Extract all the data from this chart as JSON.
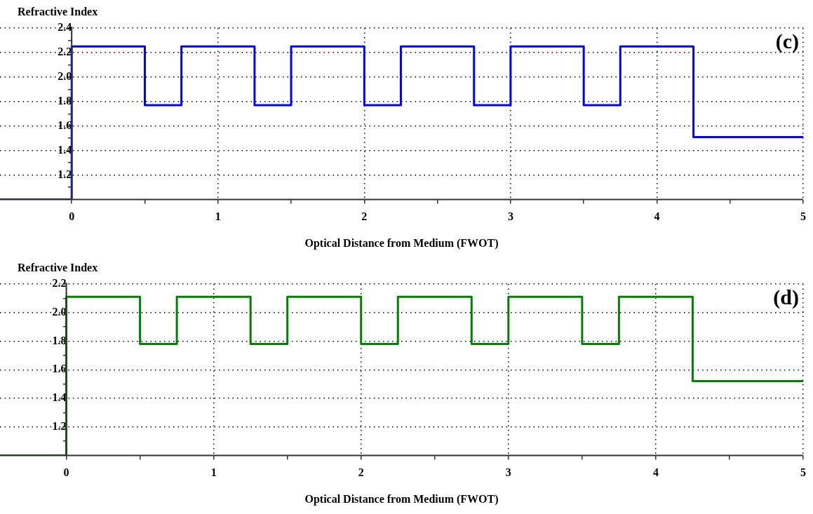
{
  "chart_data": [
    {
      "type": "step",
      "ylabel": "Refractive Index",
      "xlabel": "Optical Distance from Medium (FWOT)",
      "annotations": [
        "(c)"
      ],
      "grid": true,
      "line_style": "solid",
      "marker": "none",
      "xlim": [
        -0.49,
        5
      ],
      "ylim": [
        1.0,
        2.4
      ],
      "xticks": [
        0,
        {
          "value": 0.5,
          "label": null
        },
        1,
        {
          "value": 1.5,
          "label": null
        },
        2,
        {
          "value": 2.5,
          "label": null
        },
        3,
        {
          "value": 3.5,
          "label": null
        },
        4,
        {
          "value": 4.5,
          "label": null
        },
        5
      ],
      "yticks": [
        {
          "value": 1.1,
          "label": null
        },
        1.2,
        {
          "value": 1.3,
          "label": null
        },
        1.4,
        {
          "value": 1.5,
          "label": null
        },
        1.6,
        {
          "value": 1.7,
          "label": null
        },
        1.8,
        {
          "value": 1.9,
          "label": null
        },
        {
          "value": 2.0,
          "label": "2.0"
        },
        {
          "value": 2.1,
          "label": null
        },
        2.2,
        {
          "value": 2.3,
          "label": null
        },
        2.4
      ],
      "series": [
        {
          "color": "#0000ff",
          "x": [
            -0.49,
            0,
            0.5,
            0.75,
            1.25,
            1.5,
            2,
            2.25,
            2.75,
            3,
            3.5,
            3.75,
            4.25,
            5
          ],
          "values": [
            1.0,
            2.25,
            1.77,
            2.25,
            1.77,
            2.25,
            1.77,
            2.25,
            1.77,
            2.25,
            1.77,
            2.25,
            1.51,
            1.51
          ]
        }
      ]
    },
    {
      "type": "step",
      "ylabel": "Refractive Index",
      "xlabel": "Optical Distance from Medium (FWOT)",
      "annotations": [
        "(d)"
      ],
      "grid": true,
      "line_style": "solid",
      "marker": "none",
      "xlim": [
        -0.45,
        5
      ],
      "ylim": [
        1.0,
        2.2
      ],
      "xticks": [
        0,
        {
          "value": 0.5,
          "label": null
        },
        1,
        {
          "value": 1.5,
          "label": null
        },
        2,
        {
          "value": 2.5,
          "label": null
        },
        3,
        {
          "value": 3.5,
          "label": null
        },
        4,
        {
          "value": 4.5,
          "label": null
        },
        5
      ],
      "yticks": [
        {
          "value": 1.1,
          "label": null
        },
        1.2,
        {
          "value": 1.3,
          "label": null
        },
        1.4,
        {
          "value": 1.5,
          "label": null
        },
        1.6,
        {
          "value": 1.7,
          "label": null
        },
        1.8,
        {
          "value": 1.9,
          "label": null
        },
        {
          "value": 2.0,
          "label": "2.0"
        },
        {
          "value": 2.1,
          "label": null
        },
        2.2
      ],
      "series": [
        {
          "color": "#008000",
          "x": [
            -0.45,
            0,
            0.5,
            0.75,
            1.25,
            1.5,
            2,
            2.25,
            2.75,
            3,
            3.5,
            3.75,
            4.25,
            5
          ],
          "values": [
            1.0,
            2.11,
            1.78,
            2.11,
            1.78,
            2.11,
            1.78,
            2.11,
            1.78,
            2.11,
            1.78,
            2.11,
            1.52,
            1.52
          ]
        }
      ]
    }
  ]
}
